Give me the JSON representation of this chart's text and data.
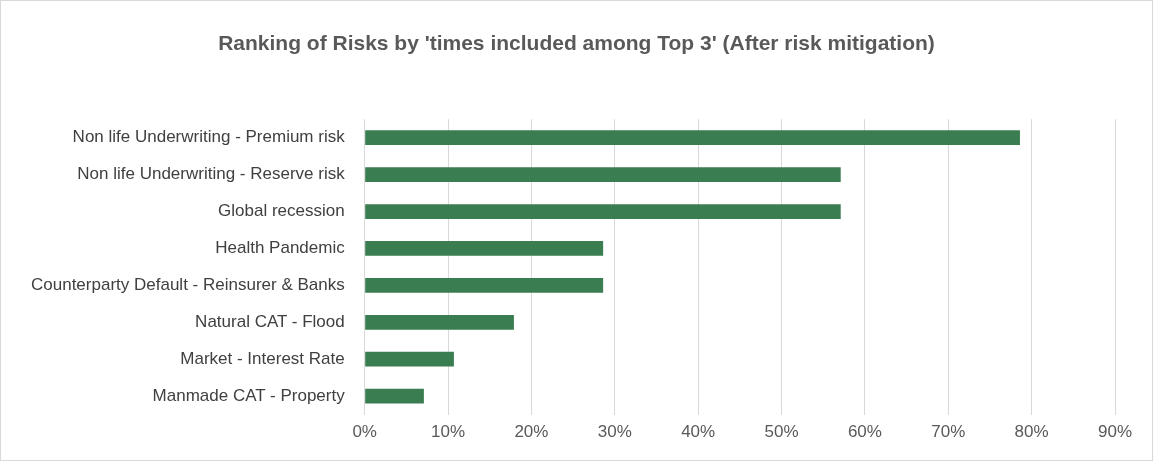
{
  "chart_data": {
    "type": "bar",
    "orientation": "horizontal",
    "title": "Ranking of Risks by 'times included among Top 3' (After risk mitigation)",
    "categories": [
      "Non life Underwriting - Premium risk",
      "Non life Underwriting - Reserve risk",
      "Global recession",
      "Health Pandemic",
      "Counterparty Default - Reinsurer & Banks",
      "Natural CAT - Flood",
      "Market - Interest Rate",
      "Manmade CAT - Property"
    ],
    "values": [
      78.6,
      57.1,
      57.1,
      28.6,
      28.6,
      17.9,
      10.7,
      7.1
    ],
    "color": "#3a7d50",
    "xlim": [
      0,
      90
    ],
    "xticks": [
      {
        "value": 0,
        "label": "0%"
      },
      {
        "value": 10,
        "label": "10%"
      },
      {
        "value": 20,
        "label": "20%"
      },
      {
        "value": 30,
        "label": "30%"
      },
      {
        "value": 40,
        "label": "40%"
      },
      {
        "value": 50,
        "label": "50%"
      },
      {
        "value": 60,
        "label": "60%"
      },
      {
        "value": 70,
        "label": "70%"
      },
      {
        "value": 80,
        "label": "80%"
      },
      {
        "value": 90,
        "label": "90%"
      }
    ],
    "grid": "x",
    "legend": false
  }
}
